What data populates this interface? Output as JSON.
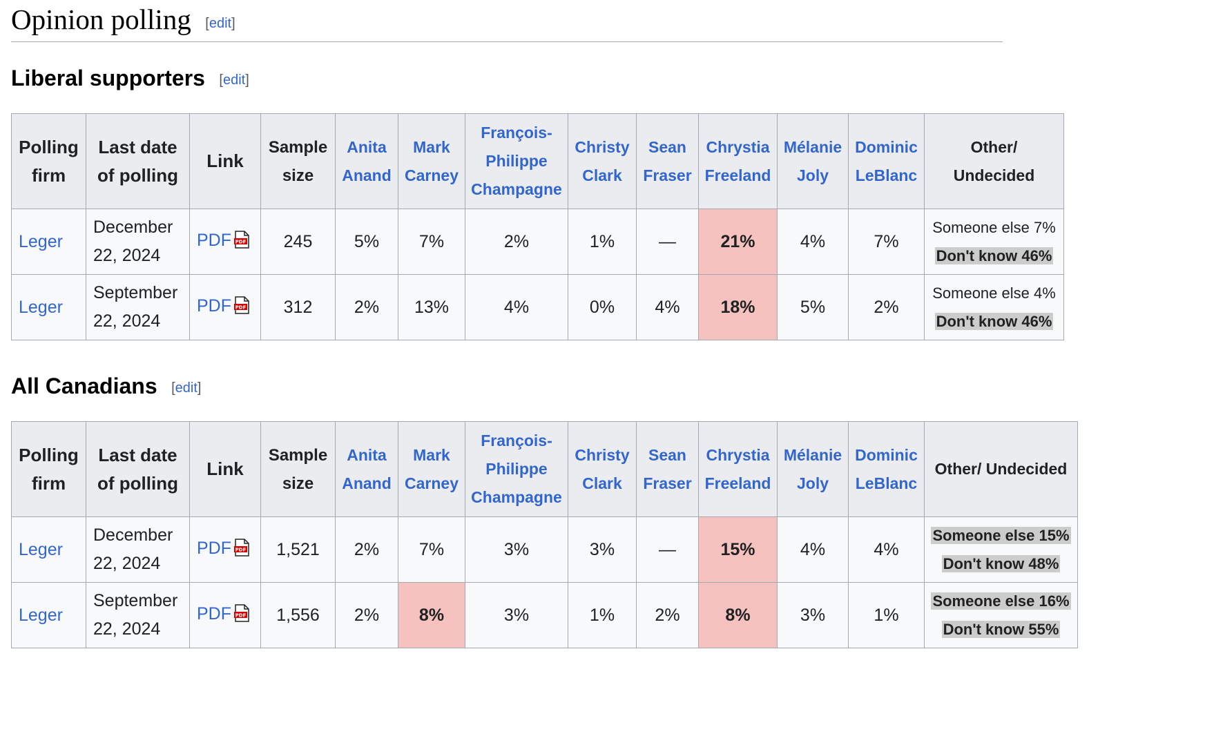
{
  "page": {
    "heading": "Opinion polling",
    "edit_label": "edit"
  },
  "liberal": {
    "heading": "Liberal supporters",
    "edit_label": "edit",
    "headers": {
      "firm": "Polling firm",
      "date": "Last date of polling",
      "link": "Link",
      "sample": "Sample size",
      "c1": "Anita Anand",
      "c2": "Mark Carney",
      "c3": "François-Philippe Champagne",
      "c4": "Christy Clark",
      "c5": "Sean Fraser",
      "c6": "Chrystia Freeland",
      "c7": "Mélanie Joly",
      "c8": "Dominic LeBlanc",
      "other": "Other/ Undecided"
    },
    "rows": [
      {
        "firm": "Leger",
        "date": "December 22, 2024",
        "link": "PDF",
        "sample": "245",
        "c1": "5%",
        "c2": "7%",
        "c3": "2%",
        "c4": "1%",
        "c5": "—",
        "c6": "21%",
        "c7": "4%",
        "c8": "7%",
        "else": "Someone else 7%",
        "dk": "Don't know 46%"
      },
      {
        "firm": "Leger",
        "date": "September 22, 2024",
        "link": "PDF",
        "sample": "312",
        "c1": "2%",
        "c2": "13%",
        "c3": "4%",
        "c4": "0%",
        "c5": "4%",
        "c6": "18%",
        "c7": "5%",
        "c8": "2%",
        "else": "Someone else 4%",
        "dk": "Don't know 46%"
      }
    ]
  },
  "all": {
    "heading": "All Canadians",
    "edit_label": "edit",
    "headers": {
      "firm": "Polling firm",
      "date": "Last date of polling",
      "link": "Link",
      "sample": "Sample size",
      "c1": "Anita Anand",
      "c2": "Mark Carney",
      "c3": "François-Philippe Champagne",
      "c4": "Christy Clark",
      "c5": "Sean Fraser",
      "c6": "Chrystia Freeland",
      "c7": "Mélanie Joly",
      "c8": "Dominic LeBlanc",
      "other": "Other/ Undecided"
    },
    "rows": [
      {
        "firm": "Leger",
        "date": "December 22, 2024",
        "link": "PDF",
        "sample": "1,521",
        "c1": "2%",
        "c2": "7%",
        "c3": "3%",
        "c4": "3%",
        "c5": "—",
        "c6": "15%",
        "c7": "4%",
        "c8": "4%",
        "else": "Someone else 15%",
        "dk": "Don't know 48%"
      },
      {
        "firm": "Leger",
        "date": "September 22, 2024",
        "link": "PDF",
        "sample": "1,556",
        "c1": "2%",
        "c2": "8%",
        "c3": "3%",
        "c4": "1%",
        "c5": "2%",
        "c6": "8%",
        "c7": "3%",
        "c8": "1%",
        "else": "Someone else 16%",
        "dk": "Don't know 55%"
      }
    ]
  },
  "colors": {
    "link": "#3366cc",
    "leader_highlight": "#f6c2c0",
    "header_bg": "#eaecf0",
    "other_highlight": "#cccccc"
  }
}
